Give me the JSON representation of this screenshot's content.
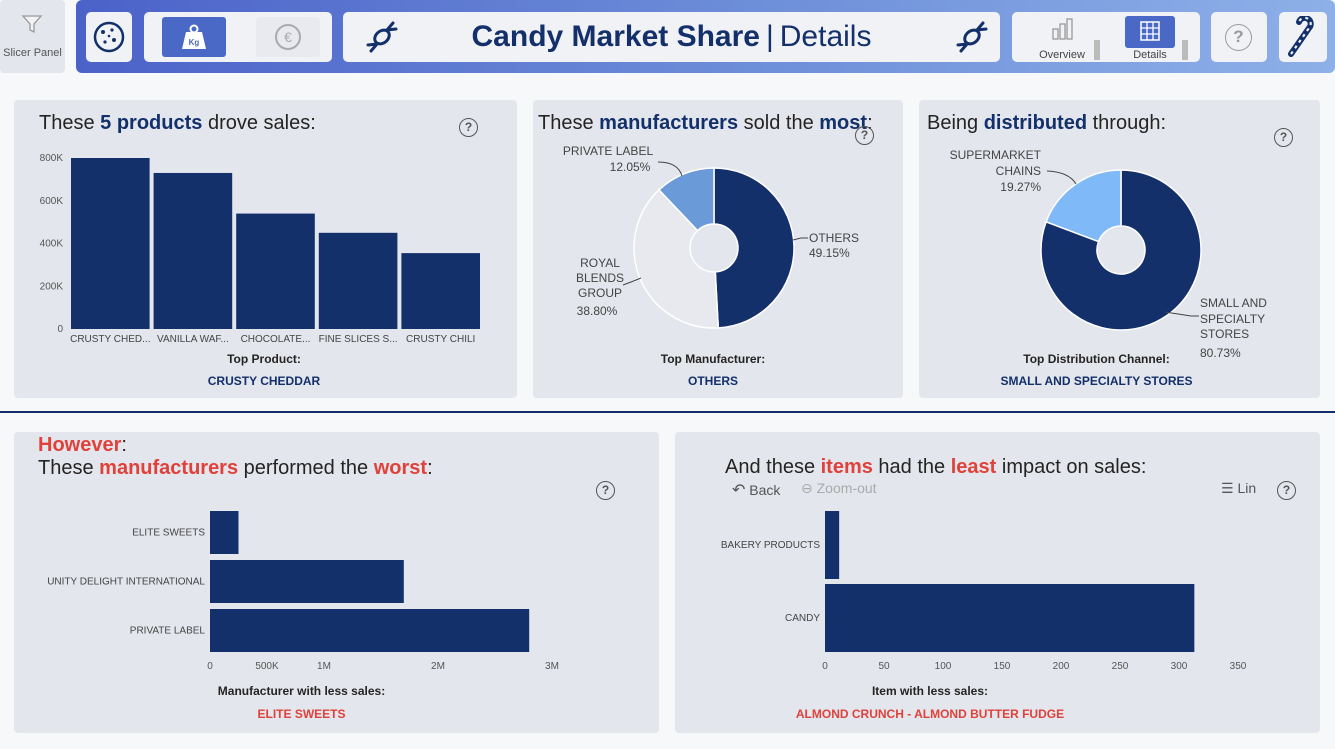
{
  "header": {
    "slicer_label": "Slicer Panel",
    "title_bold": "Candy Market Share",
    "title_sep": "|",
    "title_sub": "Details",
    "unit_toggle": {
      "kg_label": "Kg",
      "euro_symbol": "€"
    },
    "nav": [
      {
        "label": "Overview"
      },
      {
        "label": "Details"
      }
    ],
    "help_symbol": "?",
    "icons": [
      "filter-icon",
      "cookie-icon",
      "weight-icon",
      "euro-icon",
      "candy-icon",
      "bar-chart-icon",
      "table-icon",
      "help-icon",
      "candy-cane-icon"
    ],
    "colors": {
      "accent": "#13306b",
      "gradient_start": "#4b62c9",
      "gradient_end": "#8eb0e8"
    }
  },
  "panels": {
    "products": {
      "title_pre": "These ",
      "title_bold": "5 products",
      "title_post": " drove sales:",
      "caption": "Top Product:",
      "value": "CRUSTY CHEDDAR"
    },
    "manufacturers": {
      "title_pre": "These ",
      "title_bold": "manufacturers",
      "title_mid": " sold the ",
      "title_bold2": "most",
      "title_post": ":",
      "caption": "Top Manufacturer:",
      "value": "OTHERS"
    },
    "distribution": {
      "title_pre": "Being ",
      "title_bold": "distributed",
      "title_post": " through:",
      "caption": "Top Distribution Channel:",
      "value": "SMALL AND SPECIALTY STORES"
    },
    "worst": {
      "title_line1": "However",
      "title_line1_post": ":",
      "title_pre": "These ",
      "title_red": "manufacturers",
      "title_mid": " performed the ",
      "title_red2": "worst",
      "title_post": ":",
      "caption": "Manufacturer with less sales:",
      "value": "ELITE SWEETS"
    },
    "items": {
      "title_pre": "And these ",
      "title_red": "items",
      "title_mid": " had the ",
      "title_red2": "least",
      "title_post": " impact on sales:",
      "back_label": "Back",
      "zoom_label": "Zoom-out",
      "lin_label": "Lin",
      "caption": "Item with less sales:",
      "value": "ALMOND CRUNCH - ALMOND BUTTER FUDGE"
    }
  },
  "chart_data": [
    {
      "type": "bar",
      "categories": [
        "CRUSTY CHED...",
        "VANILLA WAF...",
        "CHOCOLATE...",
        "FINE SLICES S...",
        "CRUSTY CHILI"
      ],
      "values": [
        800000,
        730000,
        540000,
        450000,
        355000
      ],
      "yticks": [
        "0",
        "200K",
        "400K",
        "600K",
        "800K"
      ],
      "ylim": [
        0,
        800000
      ],
      "color": "#13306b"
    },
    {
      "type": "pie",
      "donut": true,
      "slices": [
        {
          "label": "OTHERS",
          "pct": "49.15%",
          "value": 49.15,
          "color": "#13306b"
        },
        {
          "label": "ROYAL BLENDS GROUP",
          "pct": "38.80%",
          "value": 38.8,
          "color": "#e7e9ee"
        },
        {
          "label": "PRIVATE LABEL",
          "pct": "12.05%",
          "value": 12.05,
          "color": "#6a9bd8"
        }
      ]
    },
    {
      "type": "pie",
      "donut": true,
      "slices": [
        {
          "label": "SMALL AND SPECIALTY STORES",
          "pct": "80.73%",
          "value": 80.73,
          "color": "#13306b"
        },
        {
          "label": "SUPERMARKET CHAINS",
          "pct": "19.27%",
          "value": 19.27,
          "color": "#7fb9f7"
        }
      ]
    },
    {
      "type": "bar",
      "orientation": "horizontal",
      "categories": [
        "ELITE SWEETS",
        "UNITY DELIGHT INTERNATIONAL",
        "PRIVATE LABEL"
      ],
      "values": [
        250000,
        1700000,
        2800000
      ],
      "xticks": [
        "0",
        "500K",
        "1M",
        "2M",
        "3M"
      ],
      "xlim": [
        0,
        3500000
      ],
      "color": "#13306b"
    },
    {
      "type": "bar",
      "orientation": "horizontal",
      "categories": [
        "BAKERY PRODUCTS",
        "CANDY"
      ],
      "values": [
        12,
        313
      ],
      "xticks": [
        "0",
        "50",
        "100",
        "150",
        "200",
        "250",
        "300",
        "350"
      ],
      "xlim": [
        0,
        350
      ],
      "color": "#13306b"
    }
  ]
}
